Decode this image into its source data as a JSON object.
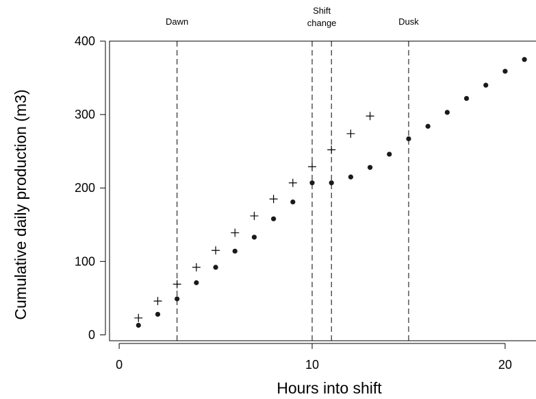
{
  "chart_data": {
    "type": "scatter",
    "xlabel": "Hours into shift",
    "ylabel": "Cumulative daily production (m3)",
    "xlim": [
      -0.5,
      21.6
    ],
    "ylim": [
      -8,
      400
    ],
    "xticks": [
      0,
      10,
      20
    ],
    "yticks": [
      0,
      100,
      200,
      300,
      400
    ],
    "grid": false,
    "series": [
      {
        "marker": "dot",
        "x": [
          1,
          2,
          3,
          4,
          5,
          6,
          7,
          8,
          9,
          10,
          11,
          12,
          13,
          14,
          15,
          16,
          17,
          18,
          19,
          20,
          21
        ],
        "y": [
          13,
          28,
          49,
          71,
          92,
          114,
          133,
          158,
          181,
          207,
          207,
          215,
          228,
          246,
          267,
          284,
          303,
          322,
          340,
          359,
          375
        ]
      },
      {
        "marker": "plus",
        "x": [
          1,
          2,
          3,
          4,
          5,
          6,
          7,
          8,
          9,
          10,
          11,
          12,
          13
        ],
        "y": [
          23,
          46,
          69,
          92,
          115,
          139,
          162,
          185,
          207,
          229,
          252,
          274,
          298
        ]
      }
    ],
    "vlines": [
      {
        "x": 3,
        "label": [
          "Dawn"
        ]
      },
      {
        "x": 10,
        "label": [
          "Shift",
          "change"
        ]
      },
      {
        "x": 11,
        "label": []
      },
      {
        "x": 15,
        "label": [
          "Dusk"
        ]
      }
    ],
    "colors": {
      "marks": "#000000",
      "dot": "#1a1a1a"
    }
  }
}
